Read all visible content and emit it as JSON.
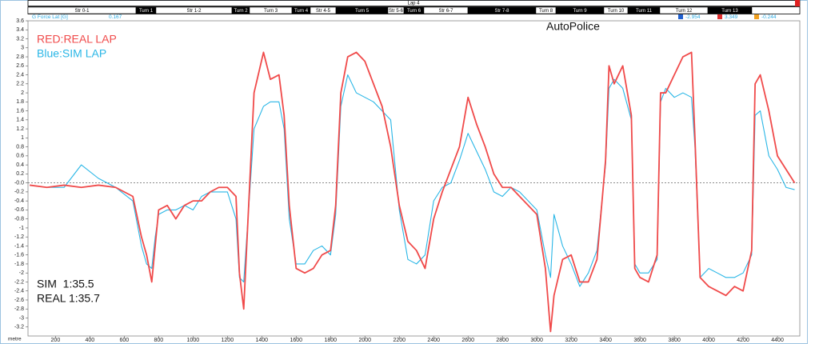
{
  "lap_label": "Lap 4",
  "segments": [
    "Str 0-1",
    "Turn 1",
    "Str 1-2",
    "Turn 2",
    "Turn 3",
    "Turn 4",
    "Str 4-5",
    "Turn 5",
    "Str 5-6",
    "Turn 6",
    "Str 6-7",
    "Str 7-8",
    "Turn 8",
    "Turn 9",
    "Turn 10",
    "Turn 11",
    "Turn 12",
    "Turn 13"
  ],
  "channel": {
    "name": "G Force Lat [G]",
    "value": 0.167
  },
  "cursor_readouts": [
    -2.954,
    3.349,
    -0.244
  ],
  "chart_data": {
    "type": "line",
    "title": "AutoPolice",
    "x_label": "metre",
    "annotations": [
      "SIM  1:35.5",
      "REAL 1:35.7"
    ],
    "x": [
      50,
      150,
      250,
      350,
      450,
      550,
      650,
      700,
      730,
      760,
      780,
      800,
      850,
      900,
      950,
      1000,
      1050,
      1100,
      1150,
      1200,
      1250,
      1270,
      1295,
      1355,
      1410,
      1450,
      1500,
      1530,
      1560,
      1600,
      1650,
      1700,
      1750,
      1800,
      1830,
      1860,
      1900,
      1950,
      2000,
      2050,
      2100,
      2150,
      2200,
      2250,
      2300,
      2350,
      2400,
      2450,
      2500,
      2550,
      2600,
      2650,
      2700,
      2750,
      2800,
      2850,
      2900,
      2950,
      3000,
      3050,
      3080,
      3100,
      3150,
      3200,
      3250,
      3300,
      3350,
      3400,
      3420,
      3450,
      3500,
      3550,
      3570,
      3600,
      3650,
      3700,
      3720,
      3750,
      3800,
      3850,
      3900,
      3920,
      3950,
      4000,
      4050,
      4100,
      4150,
      4200,
      4250,
      4270,
      4300,
      4350,
      4400,
      4450,
      4500
    ],
    "series": [
      {
        "name": "RED:REAL LAP",
        "color": "#f04a4a",
        "values": [
          -0.05,
          -0.1,
          -0.05,
          -0.1,
          -0.05,
          -0.1,
          -0.3,
          -1.2,
          -1.6,
          -2.2,
          -1.4,
          -0.6,
          -0.5,
          -0.8,
          -0.5,
          -0.4,
          -0.4,
          -0.2,
          -0.1,
          -0.1,
          -0.3,
          -2.0,
          -2.8,
          2.0,
          2.9,
          2.3,
          2.4,
          1.5,
          -0.5,
          -1.9,
          -2.0,
          -1.9,
          -1.6,
          -1.5,
          -0.5,
          2.0,
          2.8,
          2.9,
          2.7,
          2.2,
          1.7,
          0.8,
          -0.5,
          -1.3,
          -1.5,
          -1.9,
          -0.8,
          -0.2,
          0.3,
          0.8,
          1.9,
          1.3,
          0.8,
          0.2,
          -0.1,
          -0.1,
          -0.3,
          -0.5,
          -0.7,
          -1.9,
          -3.3,
          -2.5,
          -1.7,
          -1.6,
          -2.2,
          -2.2,
          -1.7,
          0.5,
          2.6,
          2.2,
          2.6,
          1.5,
          -1.9,
          -2.1,
          -2.2,
          -1.6,
          2.0,
          2.0,
          2.4,
          2.8,
          2.9,
          1.0,
          -2.1,
          -2.3,
          -2.4,
          -2.5,
          -2.3,
          -2.4,
          -1.5,
          2.2,
          2.4,
          1.6,
          0.6,
          0.3,
          0.0
        ]
      },
      {
        "name": "Blue:SIM LAP",
        "color": "#29b6e6",
        "values": [
          -0.05,
          -0.1,
          -0.1,
          0.4,
          0.1,
          -0.1,
          -0.4,
          -1.4,
          -1.8,
          -1.9,
          -1.2,
          -0.7,
          -0.6,
          -0.6,
          -0.5,
          -0.6,
          -0.3,
          -0.2,
          -0.2,
          -0.2,
          -0.8,
          -2.1,
          -2.2,
          1.2,
          1.7,
          1.8,
          1.8,
          1.2,
          -0.8,
          -1.8,
          -1.8,
          -1.5,
          -1.4,
          -1.6,
          -0.7,
          1.7,
          2.4,
          2.0,
          1.9,
          1.8,
          1.6,
          1.4,
          -0.6,
          -1.7,
          -1.8,
          -1.6,
          -0.4,
          -0.1,
          0.0,
          0.5,
          1.1,
          0.7,
          0.3,
          -0.2,
          -0.3,
          -0.1,
          -0.2,
          -0.4,
          -0.6,
          -1.6,
          -2.1,
          -0.7,
          -1.4,
          -1.8,
          -2.3,
          -2.0,
          -1.5,
          0.4,
          2.1,
          2.3,
          2.1,
          1.4,
          -1.8,
          -2.0,
          -2.0,
          -1.7,
          1.8,
          2.1,
          1.9,
          2.0,
          1.9,
          0.8,
          -2.1,
          -1.9,
          -2.0,
          -2.1,
          -2.1,
          -2.0,
          -1.6,
          1.5,
          1.6,
          0.6,
          0.3,
          -0.1,
          -0.15
        ]
      }
    ],
    "xlim": [
      40,
      4530
    ],
    "ylim": [
      -3.4,
      3.6
    ],
    "xticks": [
      200,
      400,
      600,
      800,
      1000,
      1200,
      1400,
      1600,
      1800,
      2000,
      2200,
      2400,
      2600,
      2800,
      3000,
      3200,
      3400,
      3600,
      3800,
      4000,
      4200,
      4400
    ],
    "yticks": [
      3.6,
      3.4,
      3.2,
      3.0,
      2.8,
      2.6,
      2.4,
      2.2,
      2.0,
      1.8,
      1.6,
      1.4,
      1.2,
      1.0,
      0.8,
      0.6,
      0.4,
      0.2,
      {
        "value": 0,
        "label": "-0.0"
      },
      -0.2,
      -0.4,
      -0.6,
      -0.8,
      -1.0,
      -1.2,
      -1.4,
      -1.6,
      -1.8,
      -2.0,
      -2.2,
      -2.4,
      -2.6,
      -2.8,
      -3.0,
      -3.2
    ]
  }
}
